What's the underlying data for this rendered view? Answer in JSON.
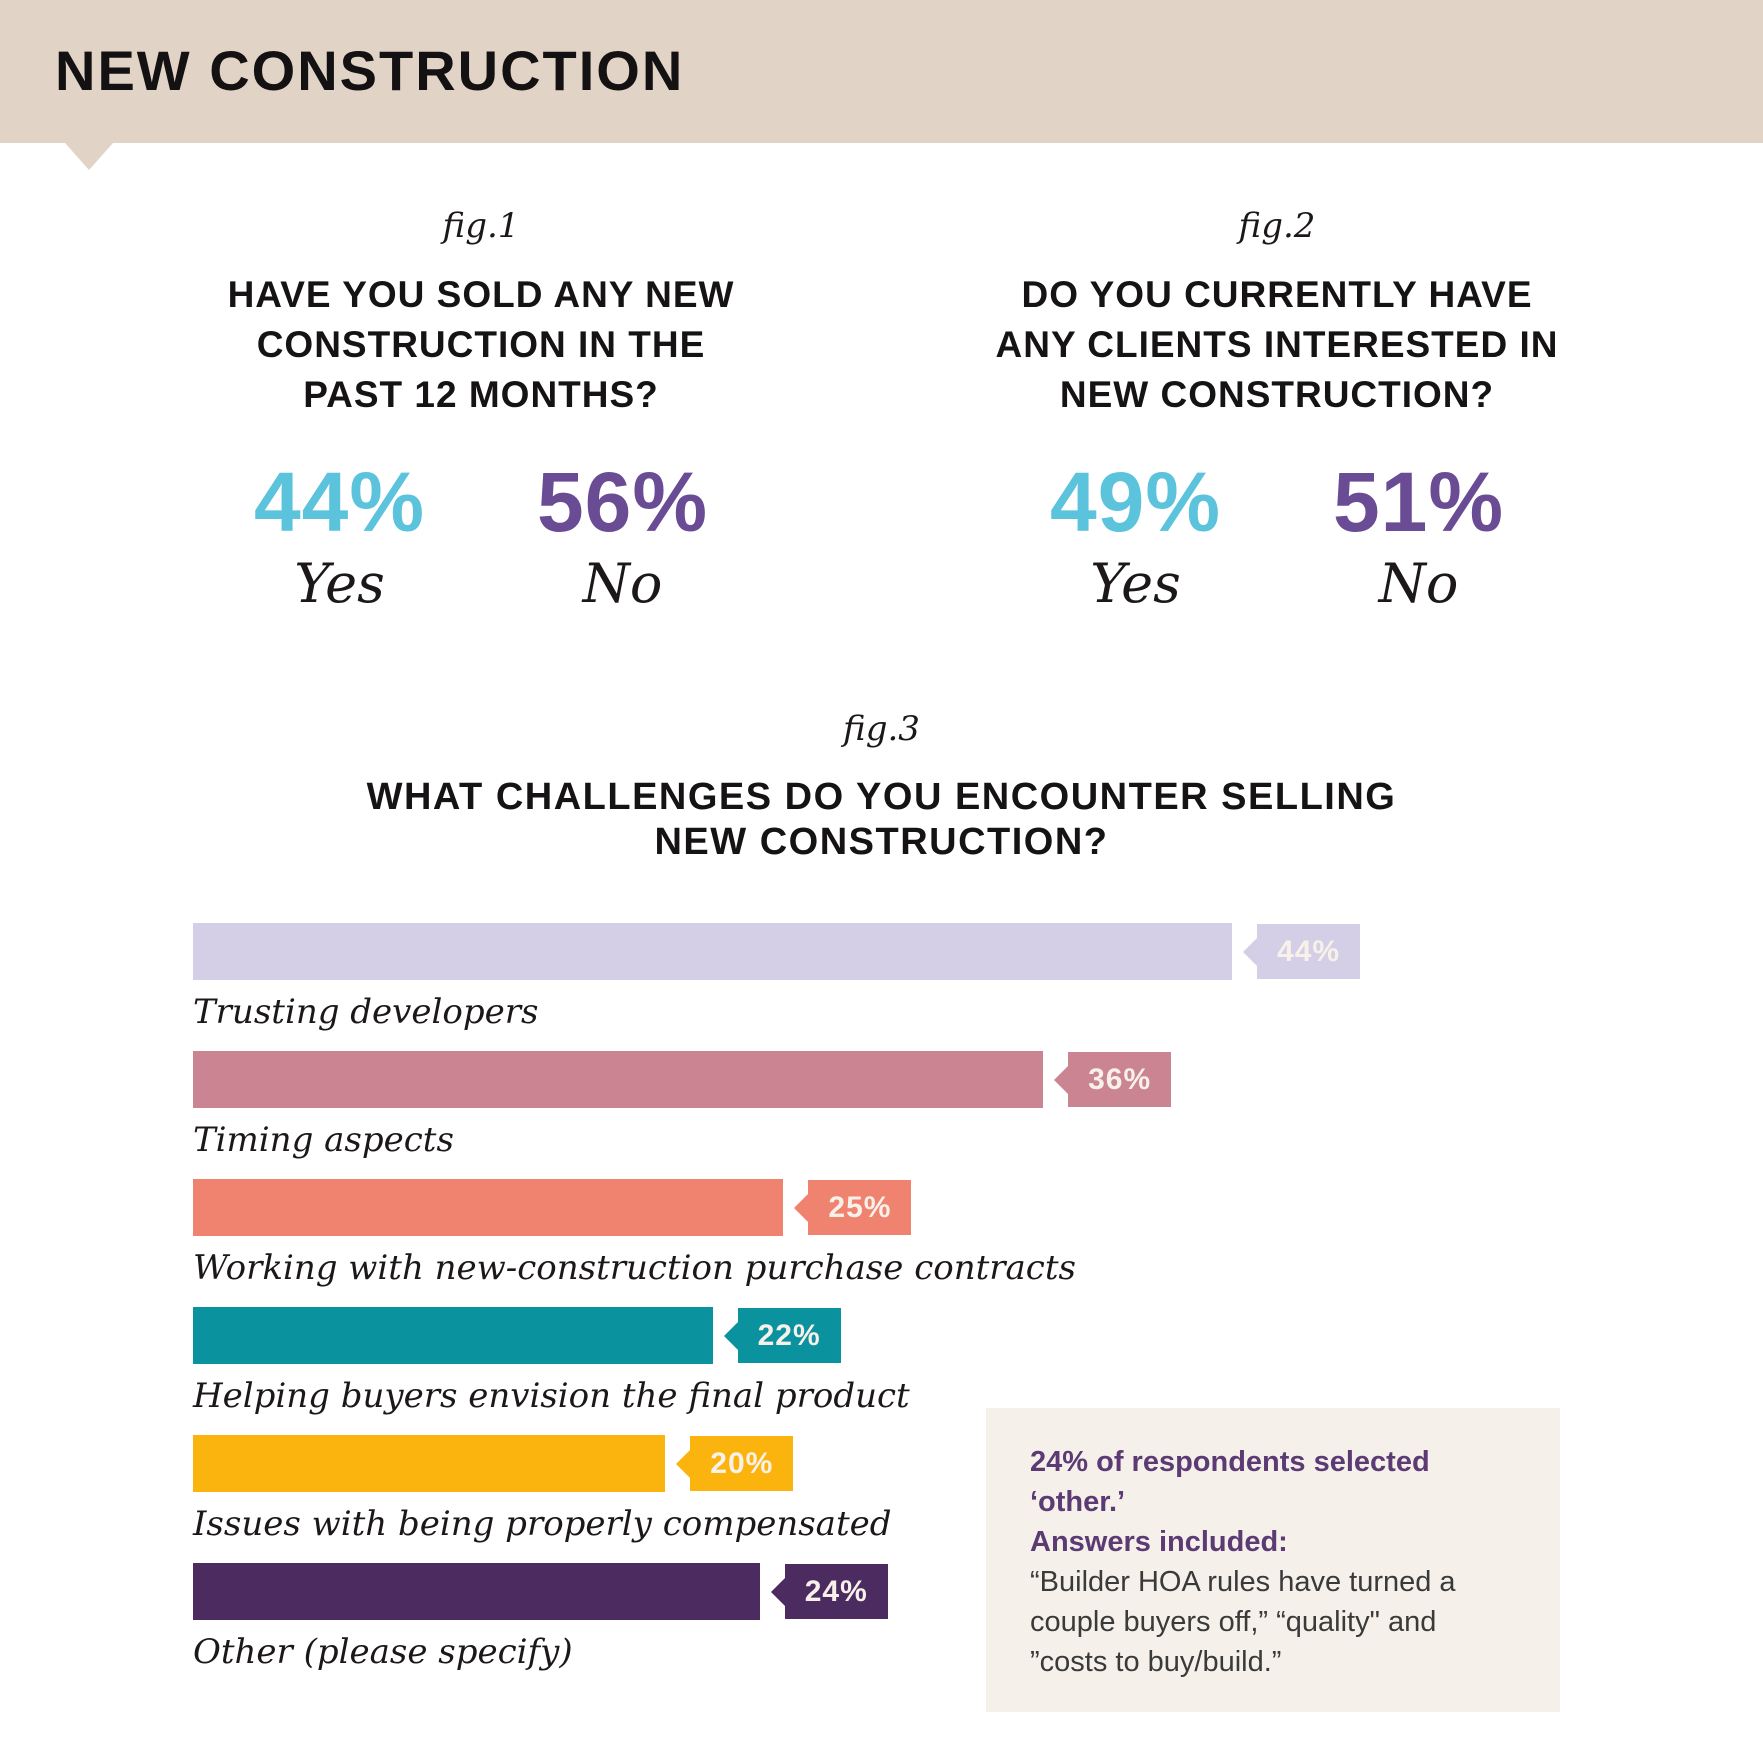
{
  "header": {
    "title": "NEW CONSTRUCTION",
    "band_color": "#e2d3c7"
  },
  "figures": [
    {
      "fig_label": "fig.1",
      "question": "HAVE YOU SOLD ANY NEW\nCONSTRUCTION IN THE\nPAST 12 MONTHS?",
      "answers": [
        {
          "value": "44%",
          "label": "Yes",
          "color": "#5bc3dc"
        },
        {
          "value": "56%",
          "label": "No",
          "color": "#6a4c95"
        }
      ]
    },
    {
      "fig_label": "fig.2",
      "question": "DO YOU CURRENTLY HAVE\nANY CLIENTS INTERESTED IN\nNEW CONSTRUCTION?",
      "answers": [
        {
          "value": "49%",
          "label": "Yes",
          "color": "#5bc3dc"
        },
        {
          "value": "51%",
          "label": "No",
          "color": "#6a4c95"
        }
      ]
    }
  ],
  "chart": {
    "fig_label": "fig.3",
    "title": "WHAT CHALLENGES DO YOU ENCOUNTER SELLING\nNEW CONSTRUCTION?",
    "bars": [
      {
        "label": "Trusting developers",
        "value": 44,
        "value_label": "44%",
        "color": "#d4cfe6"
      },
      {
        "label": "Timing aspects",
        "value": 36,
        "value_label": "36%",
        "color": "#cb8491"
      },
      {
        "label": "Working with new-construction purchase contracts",
        "value": 25,
        "value_label": "25%",
        "color": "#f08270"
      },
      {
        "label": "Helping buyers envision the final product",
        "value": 22,
        "value_label": "22%",
        "color": "#0a929e"
      },
      {
        "label": "Issues with being properly compensated",
        "value": 20,
        "value_label": "20%",
        "color": "#fbb40e"
      },
      {
        "label": "Other (please specify)",
        "value": 24,
        "value_label": "24%",
        "color": "#4b2b60"
      }
    ]
  },
  "note": {
    "heading": "24% of respondents selected ‘other.’\nAnswers included:",
    "body": "“Builder HOA rules have turned a\ncouple buyers off,” “quality\" and\n”costs to buy/build.”",
    "background": "#f5f1ea",
    "heading_color": "#5c3b74"
  },
  "chart_data": [
    {
      "type": "stat-pair",
      "figure": "fig.1",
      "title": "HAVE YOU SOLD ANY NEW CONSTRUCTION IN THE PAST 12 MONTHS?",
      "categories": [
        "Yes",
        "No"
      ],
      "values": [
        44,
        56
      ],
      "unit": "%",
      "colors": [
        "#5bc3dc",
        "#6a4c95"
      ]
    },
    {
      "type": "stat-pair",
      "figure": "fig.2",
      "title": "DO YOU CURRENTLY HAVE ANY CLIENTS INTERESTED IN NEW CONSTRUCTION?",
      "categories": [
        "Yes",
        "No"
      ],
      "values": [
        49,
        51
      ],
      "unit": "%",
      "colors": [
        "#5bc3dc",
        "#6a4c95"
      ]
    },
    {
      "type": "bar",
      "figure": "fig.3",
      "orientation": "horizontal",
      "title": "WHAT CHALLENGES DO YOU ENCOUNTER SELLING NEW CONSTRUCTION?",
      "categories": [
        "Trusting developers",
        "Timing aspects",
        "Working with new-construction purchase contracts",
        "Helping buyers envision the final product",
        "Issues with being properly compensated",
        "Other (please specify)"
      ],
      "values": [
        44,
        36,
        25,
        22,
        20,
        24
      ],
      "unit": "%",
      "colors": [
        "#d4cfe6",
        "#cb8491",
        "#f08270",
        "#0a929e",
        "#fbb40e",
        "#4b2b60"
      ],
      "xlim": [
        0,
        58
      ],
      "grid": false,
      "value_labels": "arrow-tag-right-of-bar",
      "annotation": "24% of respondents selected ‘other.’ Answers included: “Builder HOA rules have turned a couple buyers off,” “quality\" and ”costs to buy/build.”"
    }
  ]
}
